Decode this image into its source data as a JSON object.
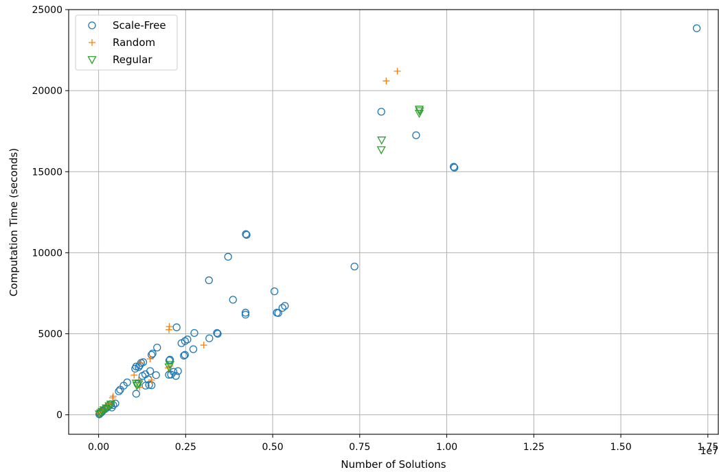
{
  "chart_data": {
    "type": "scatter",
    "title": "",
    "xlabel": "Number of Solutions",
    "ylabel": "Computation Time (seconds)",
    "x_offset_label": "1e7",
    "xlim": [
      -0.086,
      1.78
    ],
    "ylim": [
      -1200,
      25000
    ],
    "xticks": [
      0.0,
      0.25,
      0.5,
      0.75,
      1.0,
      1.25,
      1.5,
      1.75
    ],
    "xtick_labels": [
      "0.00",
      "0.25",
      "0.50",
      "0.75",
      "1.00",
      "1.25",
      "1.50",
      "1.75"
    ],
    "yticks": [
      0,
      5000,
      10000,
      15000,
      20000,
      25000
    ],
    "ytick_labels": [
      "0",
      "5000",
      "10000",
      "15000",
      "20000",
      "25000"
    ],
    "grid": true,
    "legend_position": "top-left",
    "colors": {
      "scale_free": "#1f77b4",
      "random": "#ff7f0e",
      "regular": "#2ca02c"
    },
    "series": [
      {
        "name": "Scale-Free",
        "marker": "circle",
        "points": [
          [
            1.718,
            23850
          ],
          [
            0.812,
            18700
          ],
          [
            0.912,
            17250
          ],
          [
            1.02,
            15300
          ],
          [
            1.022,
            15250
          ],
          [
            0.423,
            11150
          ],
          [
            0.425,
            11100
          ],
          [
            0.372,
            9750
          ],
          [
            0.735,
            9150
          ],
          [
            0.317,
            8300
          ],
          [
            0.505,
            7620
          ],
          [
            0.386,
            7100
          ],
          [
            0.535,
            6720
          ],
          [
            0.528,
            6600
          ],
          [
            0.422,
            6300
          ],
          [
            0.422,
            6180
          ],
          [
            0.512,
            6300
          ],
          [
            0.516,
            6280
          ],
          [
            0.224,
            5400
          ],
          [
            0.275,
            5050
          ],
          [
            0.34,
            5050
          ],
          [
            0.342,
            5000
          ],
          [
            0.255,
            4650
          ],
          [
            0.248,
            4550
          ],
          [
            0.318,
            4720
          ],
          [
            0.238,
            4420
          ],
          [
            0.272,
            4050
          ],
          [
            0.248,
            3700
          ],
          [
            0.245,
            3650
          ],
          [
            0.168,
            4150
          ],
          [
            0.155,
            3780
          ],
          [
            0.152,
            3700
          ],
          [
            0.205,
            3400
          ],
          [
            0.203,
            3350
          ],
          [
            0.128,
            3250
          ],
          [
            0.122,
            3200
          ],
          [
            0.118,
            3050
          ],
          [
            0.108,
            2980
          ],
          [
            0.115,
            2950
          ],
          [
            0.105,
            2850
          ],
          [
            0.228,
            2700
          ],
          [
            0.215,
            2650
          ],
          [
            0.148,
            2700
          ],
          [
            0.134,
            2500
          ],
          [
            0.126,
            2400
          ],
          [
            0.165,
            2450
          ],
          [
            0.202,
            2470
          ],
          [
            0.208,
            2480
          ],
          [
            0.222,
            2400
          ],
          [
            0.142,
            2200
          ],
          [
            0.135,
            1800
          ],
          [
            0.145,
            1850
          ],
          [
            0.152,
            1820
          ],
          [
            0.112,
            1900
          ],
          [
            0.108,
            1300
          ],
          [
            0.082,
            2000
          ],
          [
            0.072,
            1800
          ],
          [
            0.062,
            1550
          ],
          [
            0.058,
            1450
          ],
          [
            0.048,
            700
          ],
          [
            0.035,
            650
          ],
          [
            0.042,
            600
          ],
          [
            0.028,
            520
          ],
          [
            0.038,
            450
          ],
          [
            0.022,
            420
          ],
          [
            0.018,
            350
          ],
          [
            0.012,
            250
          ],
          [
            0.008,
            150
          ],
          [
            0.004,
            80
          ],
          [
            0.002,
            30
          ]
        ]
      },
      {
        "name": "Random",
        "marker": "plus",
        "points": [
          [
            0.858,
            21200
          ],
          [
            0.826,
            20600
          ],
          [
            0.203,
            5450
          ],
          [
            0.202,
            5250
          ],
          [
            0.302,
            4300
          ],
          [
            0.148,
            3450
          ],
          [
            0.122,
            3200
          ],
          [
            0.102,
            2450
          ],
          [
            0.115,
            2150
          ],
          [
            0.152,
            2150
          ],
          [
            0.205,
            3000
          ],
          [
            0.2,
            2900
          ],
          [
            0.118,
            1700
          ],
          [
            0.042,
            1150
          ],
          [
            0.04,
            1050
          ],
          [
            0.032,
            700
          ],
          [
            0.025,
            500
          ],
          [
            0.015,
            350
          ],
          [
            0.008,
            200
          ],
          [
            0.003,
            80
          ]
        ]
      },
      {
        "name": "Regular",
        "marker": "triangle-down",
        "points": [
          [
            0.921,
            18850
          ],
          [
            0.922,
            18750
          ],
          [
            0.921,
            18600
          ],
          [
            0.813,
            16950
          ],
          [
            0.812,
            16350
          ],
          [
            0.205,
            3100
          ],
          [
            0.202,
            2950
          ],
          [
            0.115,
            1900
          ],
          [
            0.108,
            1950
          ],
          [
            0.11,
            1800
          ],
          [
            0.035,
            650
          ],
          [
            0.03,
            550
          ],
          [
            0.022,
            420
          ],
          [
            0.015,
            300
          ],
          [
            0.01,
            200
          ],
          [
            0.006,
            120
          ],
          [
            0.002,
            50
          ]
        ]
      }
    ]
  }
}
